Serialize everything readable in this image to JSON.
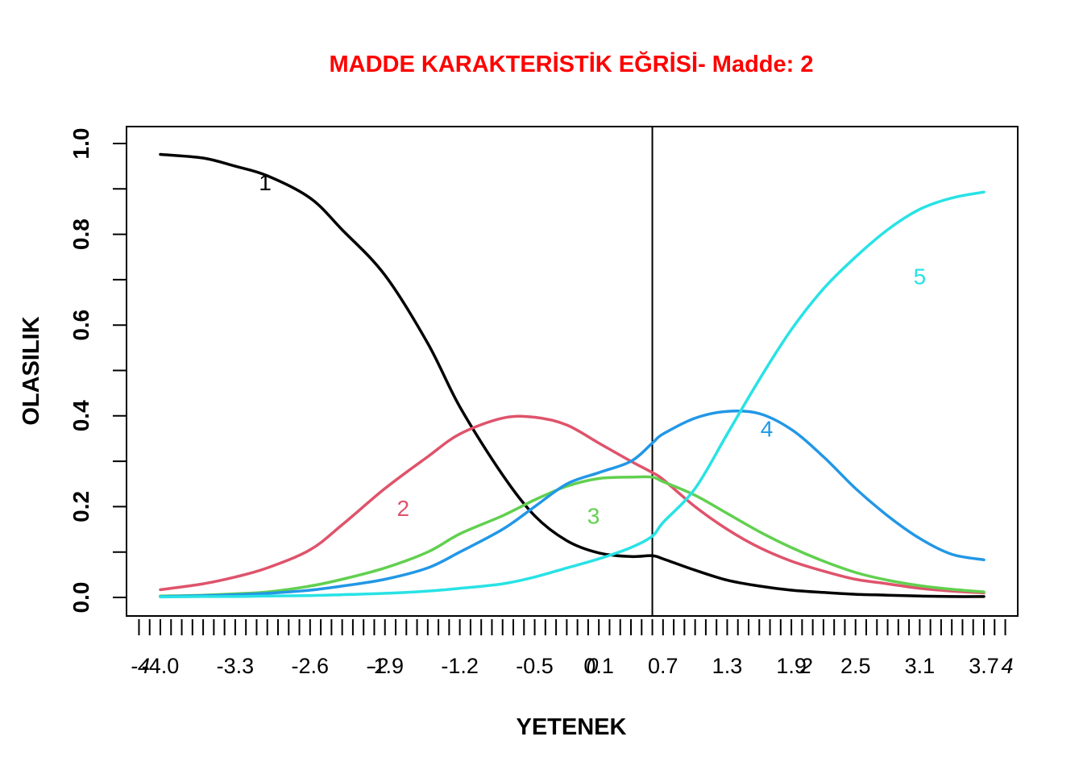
{
  "chart_data": {
    "type": "line",
    "title": "MADDE KARAKTERİSTİK EĞRİSİ- Madde: 2",
    "title_color": "#FF0000",
    "xlabel": "YETENEK",
    "ylabel": "OLASILIK",
    "xlim": [
      -4.2,
      4.2
    ],
    "ylim": [
      0,
      1
    ],
    "yticks": [
      "0.0",
      "0.2",
      "0.4",
      "0.6",
      "0.8",
      "1.0"
    ],
    "xticks_major": [
      "-4.0",
      "-3.3",
      "-2.6",
      "-1.9",
      "-1.2",
      "-0.5",
      "0.1",
      "0.7",
      "1.3",
      "1.9",
      "2.5",
      "3.1",
      "3.7"
    ],
    "xticks_major_values": [
      -4.0,
      -3.3,
      -2.6,
      -1.9,
      -1.2,
      -0.5,
      0.1,
      0.7,
      1.3,
      1.9,
      2.5,
      3.1,
      3.7
    ],
    "xticks_overlay": [
      "-4",
      "-2",
      "0",
      "2",
      "4"
    ],
    "xticks_overlay_values": [
      -4,
      -2,
      0,
      2,
      4
    ],
    "vline_x": 0.6,
    "grid": false,
    "x": [
      -4.0,
      -3.6,
      -3.3,
      -3.0,
      -2.6,
      -2.3,
      -1.9,
      -1.5,
      -1.2,
      -0.8,
      -0.5,
      -0.2,
      0.1,
      0.4,
      0.6,
      0.7,
      1.0,
      1.3,
      1.6,
      1.9,
      2.2,
      2.5,
      2.8,
      3.1,
      3.4,
      3.7
    ],
    "series": [
      {
        "name": "1",
        "color": "#000000",
        "values": [
          0.976,
          0.968,
          0.95,
          0.929,
          0.88,
          0.81,
          0.71,
          0.56,
          0.42,
          0.27,
          0.18,
          0.125,
          0.098,
          0.09,
          0.092,
          0.085,
          0.06,
          0.038,
          0.025,
          0.016,
          0.011,
          0.007,
          0.005,
          0.003,
          0.002,
          0.002
        ]
      },
      {
        "name": "2",
        "color": "#DF536B",
        "values": [
          0.017,
          0.03,
          0.045,
          0.065,
          0.105,
          0.16,
          0.24,
          0.31,
          0.36,
          0.395,
          0.397,
          0.38,
          0.34,
          0.3,
          0.275,
          0.26,
          0.2,
          0.15,
          0.11,
          0.08,
          0.058,
          0.04,
          0.03,
          0.02,
          0.014,
          0.01
        ]
      },
      {
        "name": "3",
        "color": "#61D04F",
        "values": [
          0.003,
          0.005,
          0.008,
          0.012,
          0.025,
          0.04,
          0.065,
          0.1,
          0.14,
          0.18,
          0.215,
          0.245,
          0.262,
          0.265,
          0.265,
          0.255,
          0.225,
          0.185,
          0.145,
          0.11,
          0.08,
          0.055,
          0.038,
          0.026,
          0.018,
          0.012
        ]
      },
      {
        "name": "4",
        "color": "#2297E6",
        "values": [
          0.002,
          0.004,
          0.006,
          0.009,
          0.016,
          0.025,
          0.04,
          0.065,
          0.1,
          0.15,
          0.2,
          0.25,
          0.275,
          0.3,
          0.34,
          0.36,
          0.395,
          0.41,
          0.405,
          0.37,
          0.31,
          0.24,
          0.18,
          0.13,
          0.095,
          0.083
        ]
      },
      {
        "name": "5",
        "color": "#28E2E5",
        "values": [
          0.001,
          0.002,
          0.002,
          0.003,
          0.004,
          0.006,
          0.009,
          0.014,
          0.02,
          0.03,
          0.045,
          0.065,
          0.085,
          0.11,
          0.135,
          0.165,
          0.24,
          0.36,
          0.48,
          0.59,
          0.68,
          0.75,
          0.81,
          0.855,
          0.88,
          0.893
        ]
      }
    ],
    "curve_labels": [
      {
        "text": "1",
        "x": -3.02,
        "y": 0.915,
        "color": "#000000"
      },
      {
        "text": "2",
        "x": -1.73,
        "y": 0.197,
        "color": "#DF536B"
      },
      {
        "text": "3",
        "x": 0.05,
        "y": 0.18,
        "color": "#61D04F"
      },
      {
        "text": "4",
        "x": 1.67,
        "y": 0.372,
        "color": "#2297E6"
      },
      {
        "text": "5",
        "x": 3.1,
        "y": 0.708,
        "color": "#28E2E5"
      }
    ]
  }
}
